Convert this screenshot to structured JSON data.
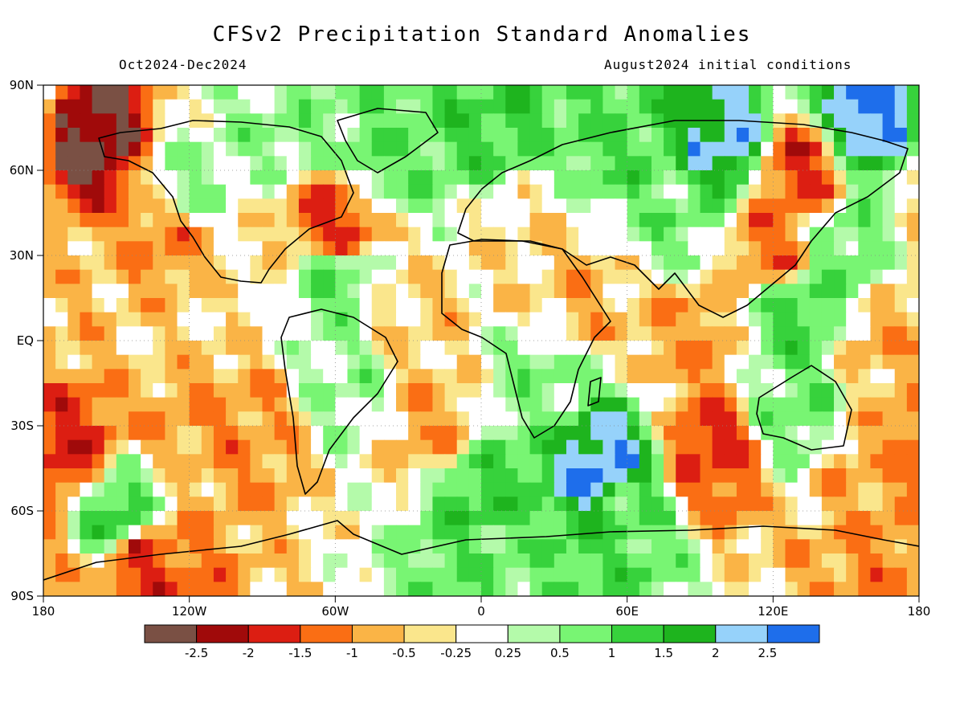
{
  "title": "CFSv2 Precipitation Standard Anomalies",
  "period": "Oct2024-Dec2024",
  "initial_conditions": "August2024 initial conditions",
  "lat_labels": [
    "90N",
    "60N",
    "30N",
    "EQ",
    "30S",
    "60S",
    "90S"
  ],
  "lon_labels": [
    "180",
    "120W",
    "60W",
    "0",
    "60E",
    "120E",
    "180"
  ],
  "colorbar": {
    "colors": [
      "#7a5044",
      "#a00a0a",
      "#dc1e12",
      "#fa6e14",
      "#fab446",
      "#fae68c",
      "#ffffff",
      "#b4faaa",
      "#78f573",
      "#37d23c",
      "#1eb41e",
      "#96d2fa",
      "#1e6eeb"
    ],
    "tick_labels": [
      "-2.5",
      "-2",
      "-1.5",
      "-1",
      "-0.5",
      "-0.25",
      "0.25",
      "0.5",
      "1",
      "1.5",
      "2",
      "2.5"
    ]
  },
  "chart_data": {
    "type": "heatmap",
    "title": "CFSv2 Precipitation Standard Anomalies",
    "subtitle_left": "Oct2024-Dec2024",
    "subtitle_right": "August2024 initial conditions",
    "x_range": [
      -180,
      180
    ],
    "y_range": [
      -90,
      90
    ],
    "x_ticks": [
      -180,
      -120,
      -60,
      0,
      60,
      120,
      180
    ],
    "y_ticks": [
      90,
      60,
      30,
      0,
      -30,
      -60,
      -90
    ],
    "levels": [
      -2.5,
      -2,
      -1.5,
      -1,
      -0.5,
      -0.25,
      0.25,
      0.5,
      1,
      1.5,
      2,
      2.5
    ],
    "grid": "dotted",
    "legend": "bottom colorbar",
    "regions": [
      {
        "lon": -165,
        "lat": 20,
        "value": -0.6
      },
      {
        "lon": -130,
        "lat": 0,
        "value": -0.4
      },
      {
        "lon": -120,
        "lat": -20,
        "value": -0.9
      },
      {
        "lon": -95,
        "lat": -30,
        "value": -1.0
      },
      {
        "lon": -170,
        "lat": -38,
        "value": -1.7
      },
      {
        "lon": -130,
        "lat": 35,
        "value": -1.1
      },
      {
        "lon": -60,
        "lat": 42,
        "value": -1.6
      },
      {
        "lon": -160,
        "lat": 70,
        "value": -2.6
      },
      {
        "lon": -30,
        "lat": 5,
        "value": -0.5
      },
      {
        "lon": -20,
        "lat": -30,
        "value": -0.8
      },
      {
        "lon": 85,
        "lat": 0,
        "value": -0.9
      },
      {
        "lon": 95,
        "lat": -40,
        "value": -1.6
      },
      {
        "lon": 120,
        "lat": 33,
        "value": -1.2
      },
      {
        "lon": 130,
        "lat": 60,
        "value": -1.5
      },
      {
        "lon": 20,
        "lat": 30,
        "value": -0.4
      },
      {
        "lon": 40,
        "lat": 15,
        "value": -0.7
      },
      {
        "lon": 165,
        "lat": 0,
        "value": -0.7
      },
      {
        "lon": 160,
        "lat": -45,
        "value": -0.8
      },
      {
        "lon": -140,
        "lat": -78,
        "value": -1.6
      },
      {
        "lon": 170,
        "lat": -75,
        "value": -1.0
      },
      {
        "lon": 0,
        "lat": 82,
        "value": 1.2
      },
      {
        "lon": 60,
        "lat": 70,
        "value": 1.0
      },
      {
        "lon": 100,
        "lat": 70,
        "value": 2.2
      },
      {
        "lon": 160,
        "lat": 80,
        "value": 2.6
      },
      {
        "lon": -40,
        "lat": 65,
        "value": 0.9
      },
      {
        "lon": -60,
        "lat": 20,
        "value": 0.8
      },
      {
        "lon": -150,
        "lat": -62,
        "value": 1.2
      },
      {
        "lon": 0,
        "lat": -55,
        "value": 1.2
      },
      {
        "lon": 60,
        "lat": -60,
        "value": 0.9
      },
      {
        "lon": 130,
        "lat": -25,
        "value": 0.8
      },
      {
        "lon": 130,
        "lat": 10,
        "value": 1.1
      },
      {
        "lon": 50,
        "lat": -45,
        "value": 2.5
      },
      {
        "lon": 80,
        "lat": 45,
        "value": 0.7
      },
      {
        "lon": -75,
        "lat": 75,
        "value": 0.6
      },
      {
        "lon": 25,
        "lat": -15,
        "value": 0.6
      },
      {
        "lon": -55,
        "lat": -15,
        "value": 0.5
      },
      {
        "lon": -120,
        "lat": 55,
        "value": 0.5
      },
      {
        "lon": 150,
        "lat": 30,
        "value": 0.8
      },
      {
        "lon": -100,
        "lat": 10,
        "value": -0.3
      },
      {
        "lon": 10,
        "lat": -75,
        "value": 0.8
      }
    ]
  }
}
